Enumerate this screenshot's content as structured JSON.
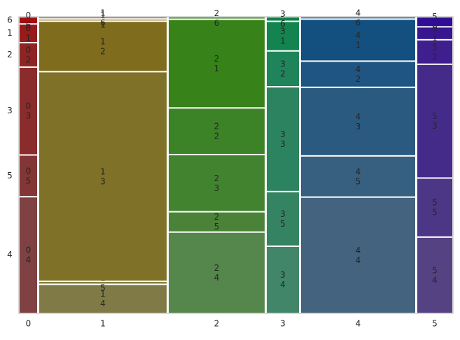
{
  "chart_data": {
    "type": "mosaic",
    "categories": [
      "0",
      "1",
      "2",
      "3",
      "4",
      "5"
    ],
    "series": [
      {
        "name": "4",
        "values": [
          20,
          35,
          76,
          21,
          130,
          26
        ],
        "colors": [
          "#7f4141",
          "#7f7a46",
          "#55864b",
          "#418668",
          "#43637f",
          "#554283"
        ]
      },
      {
        "name": "5",
        "values": [
          7,
          2,
          18,
          17,
          45,
          20
        ],
        "colors": [
          "#833636",
          "#7f7734",
          "#4a8338",
          "#348462",
          "#365f80",
          "#4c3686"
        ]
      },
      {
        "name": "3",
        "values": [
          15,
          263,
          53,
          33,
          76,
          39
        ],
        "colors": [
          "#8a2c2c",
          "#7f7128",
          "#428330",
          "#2b845f",
          "#2b5a80",
          "#452b89"
        ]
      },
      {
        "name": "2",
        "values": [
          4,
          62,
          43,
          11,
          28,
          8
        ],
        "colors": [
          "#8f2424",
          "#7f6c1d",
          "#3c8226",
          "#1f845a",
          "#1f5582",
          "#3e1f8d"
        ]
      },
      {
        "name": "1",
        "values": [
          3,
          1,
          83,
          9,
          46,
          4
        ],
        "colors": [
          "#971b1b",
          "#7f6a14",
          "#38821a",
          "#138450",
          "#13507f",
          "#371690"
        ]
      },
      {
        "name": "6",
        "values": [
          1,
          1,
          1,
          1,
          1,
          3
        ],
        "colors": [
          "#a01010",
          "#806510",
          "#30820f",
          "#0a8548",
          "#0a4b80",
          "#300d95"
        ]
      }
    ]
  }
}
